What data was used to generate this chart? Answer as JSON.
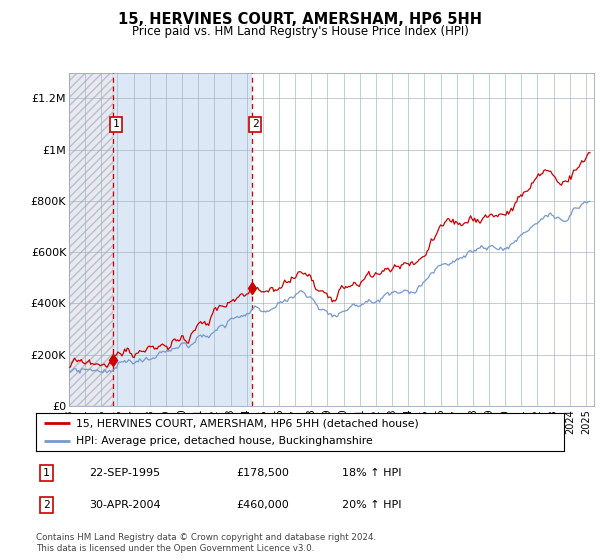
{
  "title": "15, HERVINES COURT, AMERSHAM, HP6 5HH",
  "subtitle": "Price paid vs. HM Land Registry's House Price Index (HPI)",
  "legend_line1": "15, HERVINES COURT, AMERSHAM, HP6 5HH (detached house)",
  "legend_line2": "HPI: Average price, detached house, Buckinghamshire",
  "footnote": "Contains HM Land Registry data © Crown copyright and database right 2024.\nThis data is licensed under the Open Government Licence v3.0.",
  "sale1_date": "22-SEP-1995",
  "sale1_price": 178500,
  "sale1_label": "18% ↑ HPI",
  "sale2_date": "30-APR-2004",
  "sale2_price": 460000,
  "sale2_label": "20% ↑ HPI",
  "sale1_x": 1995.72,
  "sale2_x": 2004.33,
  "red_color": "#cc0000",
  "blue_color": "#7799cc",
  "ylim": [
    0,
    1300000
  ],
  "xlim_start": 1993.0,
  "xlim_end": 2025.5,
  "yticks": [
    0,
    200000,
    400000,
    600000,
    800000,
    1000000,
    1200000
  ],
  "ylabels": [
    "£0",
    "£200K",
    "£400K",
    "£600K",
    "£800K",
    "£1M",
    "£1.2M"
  ]
}
